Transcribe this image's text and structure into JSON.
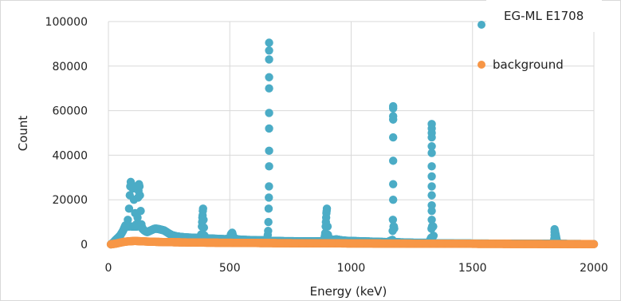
{
  "chart_data": {
    "type": "scatter",
    "title": "",
    "xlabel": "Energy (keV)",
    "ylabel": "Count",
    "xlim": [
      0,
      2000
    ],
    "ylim": [
      0,
      100000
    ],
    "x_ticks": [
      "0",
      "500",
      "1000",
      "1500",
      "2000"
    ],
    "y_ticks": [
      "0",
      "20000",
      "40000",
      "60000",
      "80000",
      "100000"
    ],
    "grid": true,
    "legend_position": "top-right",
    "series": [
      {
        "name": "EG-ML E1708",
        "color": "#4bacc6",
        "points": [
          [
            10,
            0
          ],
          [
            20,
            800
          ],
          [
            30,
            2000
          ],
          [
            40,
            3000
          ],
          [
            50,
            4200
          ],
          [
            60,
            6000
          ],
          [
            70,
            8500
          ],
          [
            80,
            11000
          ],
          [
            85,
            16000
          ],
          [
            88,
            22000
          ],
          [
            90,
            26000
          ],
          [
            92,
            28000
          ],
          [
            95,
            27000
          ],
          [
            100,
            25000
          ],
          [
            105,
            20000
          ],
          [
            110,
            14000
          ],
          [
            115,
            9000
          ],
          [
            120,
            12000
          ],
          [
            122,
            21000
          ],
          [
            124,
            24000
          ],
          [
            126,
            27000
          ],
          [
            128,
            26000
          ],
          [
            130,
            22000
          ],
          [
            133,
            15000
          ],
          [
            136,
            9000
          ],
          [
            140,
            7000
          ],
          [
            150,
            6000
          ],
          [
            160,
            5500
          ],
          [
            170,
            6000
          ],
          [
            180,
            6500
          ],
          [
            190,
            7000
          ],
          [
            200,
            7000
          ],
          [
            210,
            6800
          ],
          [
            220,
            6500
          ],
          [
            230,
            6200
          ],
          [
            240,
            5500
          ],
          [
            250,
            4800
          ],
          [
            260,
            4200
          ],
          [
            280,
            3600
          ],
          [
            300,
            3300
          ],
          [
            320,
            3100
          ],
          [
            340,
            3000
          ],
          [
            360,
            2900
          ],
          [
            375,
            2900
          ],
          [
            383,
            4500
          ],
          [
            385,
            8000
          ],
          [
            386,
            10000
          ],
          [
            387,
            12000
          ],
          [
            388,
            13000
          ],
          [
            389,
            15000
          ],
          [
            390,
            16000
          ],
          [
            392,
            11000
          ],
          [
            395,
            4000
          ],
          [
            400,
            2700
          ],
          [
            420,
            2600
          ],
          [
            440,
            2500
          ],
          [
            460,
            2400
          ],
          [
            480,
            2300
          ],
          [
            500,
            2500
          ],
          [
            505,
            4500
          ],
          [
            510,
            5200
          ],
          [
            515,
            3000
          ],
          [
            530,
            2200
          ],
          [
            560,
            2000
          ],
          [
            590,
            1900
          ],
          [
            620,
            1800
          ],
          [
            640,
            1800
          ],
          [
            655,
            2500
          ],
          [
            658,
            6000
          ],
          [
            659,
            10000
          ],
          [
            660,
            16000
          ],
          [
            661,
            21000
          ],
          [
            661.5,
            26000
          ],
          [
            662,
            35000
          ],
          [
            662,
            42000
          ],
          [
            662,
            52000
          ],
          [
            662,
            59000
          ],
          [
            662,
            70000
          ],
          [
            662,
            75000
          ],
          [
            662,
            83000
          ],
          [
            662,
            87000
          ],
          [
            662,
            90500
          ],
          [
            663,
            1500
          ],
          [
            670,
            1500
          ],
          [
            700,
            1500
          ],
          [
            730,
            1400
          ],
          [
            760,
            1400
          ],
          [
            790,
            1300
          ],
          [
            820,
            1300
          ],
          [
            850,
            1300
          ],
          [
            880,
            1300
          ],
          [
            890,
            2500
          ],
          [
            893,
            5000
          ],
          [
            895,
            8000
          ],
          [
            896,
            10000
          ],
          [
            897,
            12000
          ],
          [
            898,
            14000
          ],
          [
            899,
            15000
          ],
          [
            900,
            16000
          ],
          [
            905,
            3000
          ],
          [
            920,
            2000
          ],
          [
            940,
            2200
          ],
          [
            960,
            1800
          ],
          [
            980,
            1600
          ],
          [
            1000,
            1500
          ],
          [
            1030,
            1400
          ],
          [
            1060,
            1300
          ],
          [
            1090,
            1200
          ],
          [
            1120,
            1100
          ],
          [
            1150,
            1000
          ],
          [
            1170,
            2000
          ],
          [
            1171,
            6000
          ],
          [
            1172,
            11000
          ],
          [
            1173,
            20000
          ],
          [
            1173,
            27000
          ],
          [
            1173,
            37500
          ],
          [
            1173,
            48000
          ],
          [
            1173,
            56000
          ],
          [
            1173,
            57500
          ],
          [
            1173,
            61000
          ],
          [
            1173,
            62000
          ],
          [
            1178,
            1000
          ],
          [
            1200,
            900
          ],
          [
            1230,
            800
          ],
          [
            1260,
            700
          ],
          [
            1290,
            700
          ],
          [
            1320,
            700
          ],
          [
            1330,
            3000
          ],
          [
            1331,
            7000
          ],
          [
            1332,
            11000
          ],
          [
            1332,
            15000
          ],
          [
            1332,
            17500
          ],
          [
            1332,
            22000
          ],
          [
            1332,
            26000
          ],
          [
            1332,
            30500
          ],
          [
            1332,
            35000
          ],
          [
            1332,
            41000
          ],
          [
            1332,
            44000
          ],
          [
            1332,
            48000
          ],
          [
            1332,
            50000
          ],
          [
            1332,
            52000
          ],
          [
            1332,
            54000
          ],
          [
            1340,
            500
          ],
          [
            1380,
            450
          ],
          [
            1420,
            400
          ],
          [
            1460,
            380
          ],
          [
            1500,
            350
          ],
          [
            1540,
            330
          ],
          [
            1580,
            300
          ],
          [
            1620,
            300
          ],
          [
            1660,
            280
          ],
          [
            1700,
            260
          ],
          [
            1740,
            250
          ],
          [
            1780,
            240
          ],
          [
            1820,
            220
          ],
          [
            1836,
            1000
          ],
          [
            1837,
            2500
          ],
          [
            1838,
            4000
          ],
          [
            1838,
            5500
          ],
          [
            1838,
            6800
          ],
          [
            1850,
            200
          ],
          [
            1880,
            180
          ],
          [
            1920,
            150
          ],
          [
            1960,
            120
          ],
          [
            2000,
            100
          ]
        ]
      },
      {
        "name": "background",
        "color": "#f79646",
        "points": [
          [
            10,
            0
          ],
          [
            30,
            300
          ],
          [
            50,
            800
          ],
          [
            70,
            1200
          ],
          [
            90,
            1400
          ],
          [
            110,
            1500
          ],
          [
            130,
            1400
          ],
          [
            150,
            1300
          ],
          [
            170,
            1200
          ],
          [
            200,
            1100
          ],
          [
            230,
            1000
          ],
          [
            260,
            950
          ],
          [
            290,
            900
          ],
          [
            320,
            850
          ],
          [
            350,
            800
          ],
          [
            380,
            780
          ],
          [
            410,
            750
          ],
          [
            440,
            720
          ],
          [
            470,
            700
          ],
          [
            500,
            680
          ],
          [
            530,
            650
          ],
          [
            560,
            620
          ],
          [
            590,
            600
          ],
          [
            620,
            580
          ],
          [
            650,
            560
          ],
          [
            680,
            540
          ],
          [
            710,
            520
          ],
          [
            740,
            500
          ],
          [
            770,
            480
          ],
          [
            800,
            460
          ],
          [
            830,
            450
          ],
          [
            860,
            440
          ],
          [
            890,
            430
          ],
          [
            920,
            420
          ],
          [
            950,
            410
          ],
          [
            980,
            400
          ],
          [
            1010,
            390
          ],
          [
            1040,
            380
          ],
          [
            1070,
            370
          ],
          [
            1100,
            360
          ],
          [
            1130,
            350
          ],
          [
            1160,
            340
          ],
          [
            1190,
            330
          ],
          [
            1220,
            320
          ],
          [
            1250,
            310
          ],
          [
            1280,
            300
          ],
          [
            1310,
            290
          ],
          [
            1340,
            280
          ],
          [
            1370,
            270
          ],
          [
            1400,
            260
          ],
          [
            1430,
            250
          ],
          [
            1460,
            240
          ],
          [
            1490,
            230
          ],
          [
            1520,
            220
          ],
          [
            1550,
            210
          ],
          [
            1580,
            200
          ],
          [
            1610,
            190
          ],
          [
            1640,
            180
          ],
          [
            1670,
            170
          ],
          [
            1700,
            160
          ],
          [
            1730,
            150
          ],
          [
            1760,
            140
          ],
          [
            1790,
            130
          ],
          [
            1820,
            120
          ],
          [
            1850,
            110
          ],
          [
            1880,
            100
          ],
          [
            1910,
            90
          ],
          [
            1940,
            80
          ],
          [
            1970,
            70
          ],
          [
            2000,
            60
          ]
        ]
      }
    ]
  }
}
